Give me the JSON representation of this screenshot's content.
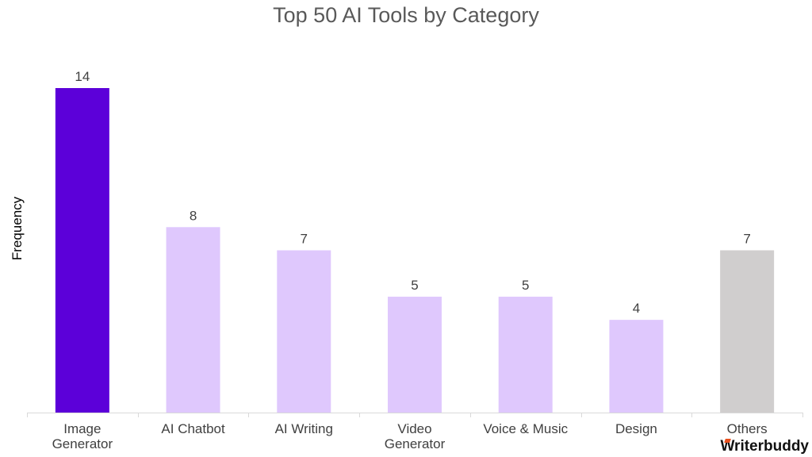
{
  "chart_data": {
    "type": "bar",
    "title": "Top 50 AI Tools by Category",
    "xlabel": "",
    "ylabel": "Frequency",
    "categories": [
      "Image Generator",
      "AI Chatbot",
      "AI Writing",
      "Video Generator",
      "Voice & Music",
      "Design",
      "Others"
    ],
    "category_lines": [
      [
        "Image",
        "Generator"
      ],
      [
        "AI Chatbot"
      ],
      [
        "AI Writing"
      ],
      [
        "Video",
        "Generator"
      ],
      [
        "Voice & Music"
      ],
      [
        "Design"
      ],
      [
        "Others"
      ]
    ],
    "values": [
      14,
      8,
      7,
      5,
      5,
      4,
      7
    ],
    "bar_colors": [
      "#5c00d9",
      "#dfc8fd",
      "#dfc8fd",
      "#dfc8fd",
      "#dfc8fd",
      "#dfc8fd",
      "#d0cece"
    ],
    "ylim": [
      0,
      14
    ],
    "grid": false,
    "legend": "none",
    "data_labels": true
  },
  "brand": {
    "logo_text": "Writerbuddy",
    "accent": "#e8501e"
  }
}
